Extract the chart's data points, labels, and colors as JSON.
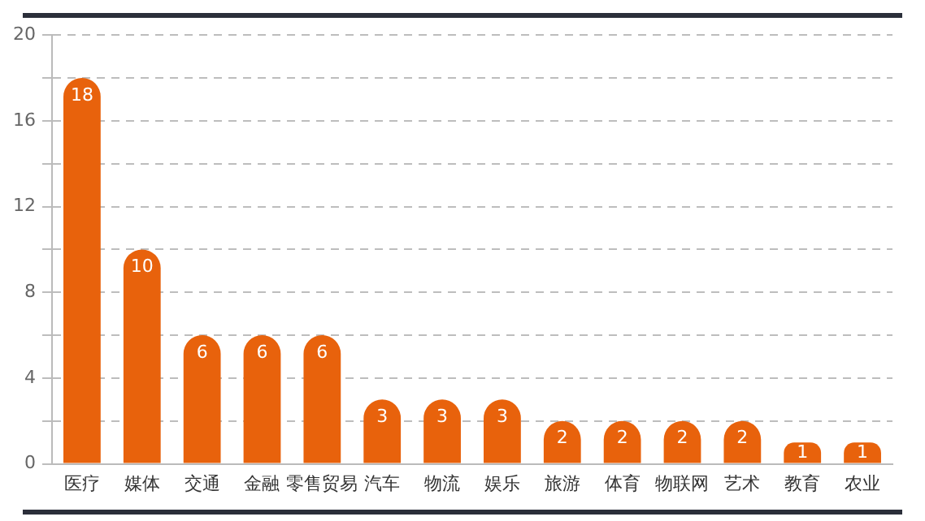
{
  "chart_data": {
    "type": "bar",
    "categories": [
      "医疗",
      "媒体",
      "交通",
      "金融",
      "零售贸易",
      "汽车",
      "物流",
      "娱乐",
      "旅游",
      "体育",
      "物联网",
      "艺术",
      "教育",
      "农业"
    ],
    "values": [
      18,
      10,
      6,
      6,
      6,
      3,
      3,
      3,
      2,
      2,
      2,
      2,
      1,
      1
    ],
    "color": "#e8620c",
    "ylim": [
      0,
      20
    ],
    "yticks": [
      0,
      {
        "value": 2,
        "label": null
      },
      4,
      {
        "value": 6,
        "label": null
      },
      8,
      {
        "value": 10,
        "label": null
      },
      12,
      {
        "value": 14,
        "label": null
      },
      16,
      {
        "value": 18,
        "label": null
      },
      20
    ],
    "grid": "y",
    "data_labels": true
  }
}
